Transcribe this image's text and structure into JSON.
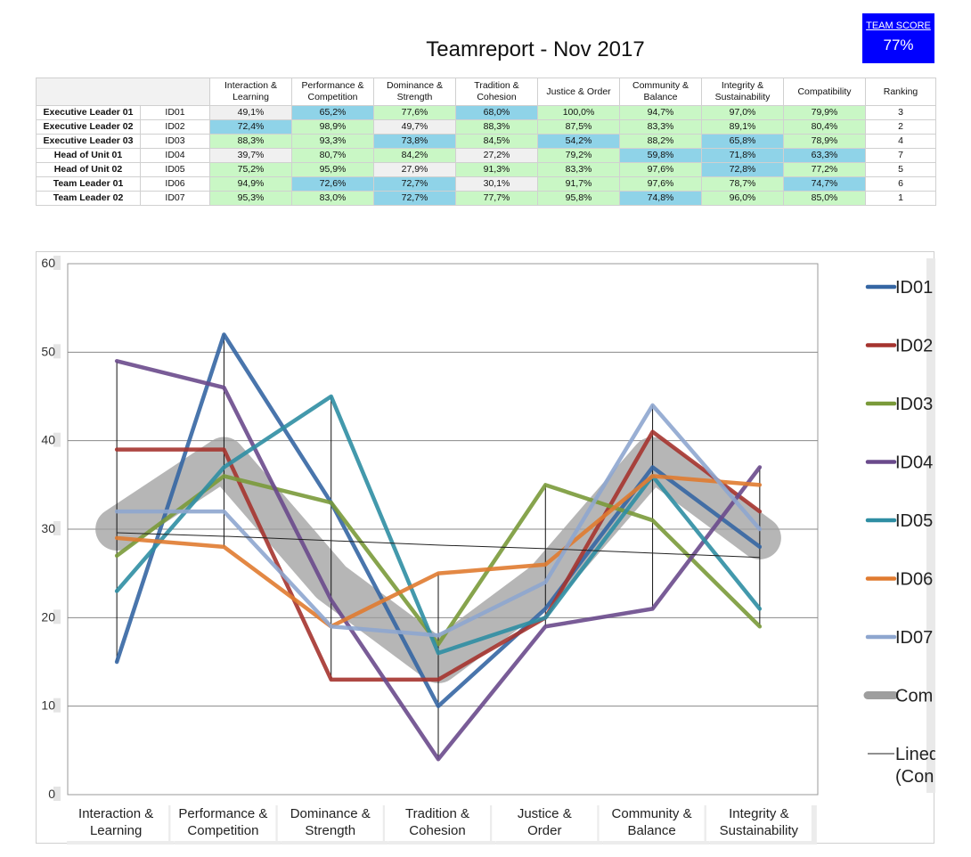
{
  "report": {
    "title": "Teamreport - Nov 2017"
  },
  "team_score": {
    "label": "TEAM SCORE",
    "value": "77%"
  },
  "table": {
    "columns": [
      "Interaction & Learning",
      "Performance & Competition",
      "Dominance & Strength",
      "Tradition & Cohesion",
      "Justice & Order",
      "Community & Balance",
      "Integrity & Sustainability",
      "Compatibility",
      "Ranking"
    ],
    "rows": [
      {
        "name": "Executive Leader 01",
        "id": "ID01",
        "cells": [
          "49,1%",
          "65,2%",
          "77,6%",
          "68,0%",
          "100,0%",
          "94,7%",
          "97,0%",
          "79,9%"
        ],
        "shade": [
          "w",
          "b",
          "g",
          "b",
          "g",
          "g",
          "g",
          "g"
        ],
        "rank": "3"
      },
      {
        "name": "Executive Leader 02",
        "id": "ID02",
        "cells": [
          "72,4%",
          "98,9%",
          "49,7%",
          "88,3%",
          "87,5%",
          "83,3%",
          "89,1%",
          "80,4%"
        ],
        "shade": [
          "b",
          "g",
          "w",
          "g",
          "g",
          "g",
          "g",
          "g"
        ],
        "rank": "2"
      },
      {
        "name": "Executive Leader 03",
        "id": "ID03",
        "cells": [
          "88,3%",
          "93,3%",
          "73,8%",
          "84,5%",
          "54,2%",
          "88,2%",
          "65,8%",
          "78,9%"
        ],
        "shade": [
          "g",
          "g",
          "b",
          "g",
          "b",
          "g",
          "b",
          "g"
        ],
        "rank": "4"
      },
      {
        "name": "Head of Unit 01",
        "id": "ID04",
        "cells": [
          "39,7%",
          "80,7%",
          "84,2%",
          "27,2%",
          "79,2%",
          "59,8%",
          "71,8%",
          "63,3%"
        ],
        "shade": [
          "w",
          "g",
          "g",
          "w",
          "g",
          "b",
          "b",
          "b"
        ],
        "rank": "7"
      },
      {
        "name": "Head of Unit 02",
        "id": "ID05",
        "cells": [
          "75,2%",
          "95,9%",
          "27,9%",
          "91,3%",
          "83,3%",
          "97,6%",
          "72,8%",
          "77,2%"
        ],
        "shade": [
          "g",
          "g",
          "w",
          "g",
          "g",
          "g",
          "b",
          "g"
        ],
        "rank": "5"
      },
      {
        "name": "Team Leader 01",
        "id": "ID06",
        "cells": [
          "94,9%",
          "72,6%",
          "72,7%",
          "30,1%",
          "91,7%",
          "97,6%",
          "78,7%",
          "74,7%"
        ],
        "shade": [
          "g",
          "b",
          "b",
          "w",
          "g",
          "g",
          "g",
          "b"
        ],
        "rank": "6"
      },
      {
        "name": "Team Leader 02",
        "id": "ID07",
        "cells": [
          "95,3%",
          "83,0%",
          "72,7%",
          "77,7%",
          "95,8%",
          "74,8%",
          "96,0%",
          "85,0%"
        ],
        "shade": [
          "g",
          "g",
          "b",
          "g",
          "g",
          "b",
          "g",
          "g"
        ],
        "rank": "1"
      }
    ]
  },
  "chart_data": {
    "type": "line",
    "categories": [
      "Interaction & Learning",
      "Performance & Competition",
      "Dominance & Strength",
      "Tradition & Cohesion",
      "Justice & Order",
      "Community & Balance",
      "Integrity & Sustainability"
    ],
    "ylim": [
      0,
      60
    ],
    "yticks": [
      0,
      10,
      20,
      30,
      40,
      50,
      60
    ],
    "grid": true,
    "legend_position": "right",
    "series": [
      {
        "name": "ID01",
        "color": "#3566a3",
        "values": [
          15,
          52,
          33,
          10,
          21,
          37,
          28
        ]
      },
      {
        "name": "ID02",
        "color": "#a5342f",
        "values": [
          39,
          39,
          13,
          13,
          20,
          41,
          32
        ]
      },
      {
        "name": "ID03",
        "color": "#7a9a3a",
        "values": [
          27,
          36,
          33,
          17,
          35,
          31,
          19
        ]
      },
      {
        "name": "ID04",
        "color": "#6a4a8c",
        "values": [
          49,
          46,
          22,
          4,
          19,
          21,
          37
        ]
      },
      {
        "name": "ID05",
        "color": "#2f8ea3",
        "values": [
          23,
          37,
          45,
          16,
          20,
          36,
          21
        ]
      },
      {
        "name": "ID06",
        "color": "#e07b30",
        "values": [
          29,
          28,
          19,
          25,
          26,
          36,
          35
        ]
      },
      {
        "name": "ID07",
        "color": "#8ea6cf",
        "values": [
          32,
          32,
          19,
          18,
          24,
          44,
          30
        ]
      }
    ],
    "composite": {
      "name": "Com",
      "color": "#9e9e9e",
      "values": [
        30,
        38,
        24,
        15,
        24,
        38,
        29
      ]
    },
    "trendline": {
      "name": "Lined",
      "name_line2": "(Con",
      "color": "#222222",
      "values": [
        29.6,
        29.2,
        28.7,
        28.2,
        27.8,
        27.3,
        26.8
      ]
    }
  }
}
